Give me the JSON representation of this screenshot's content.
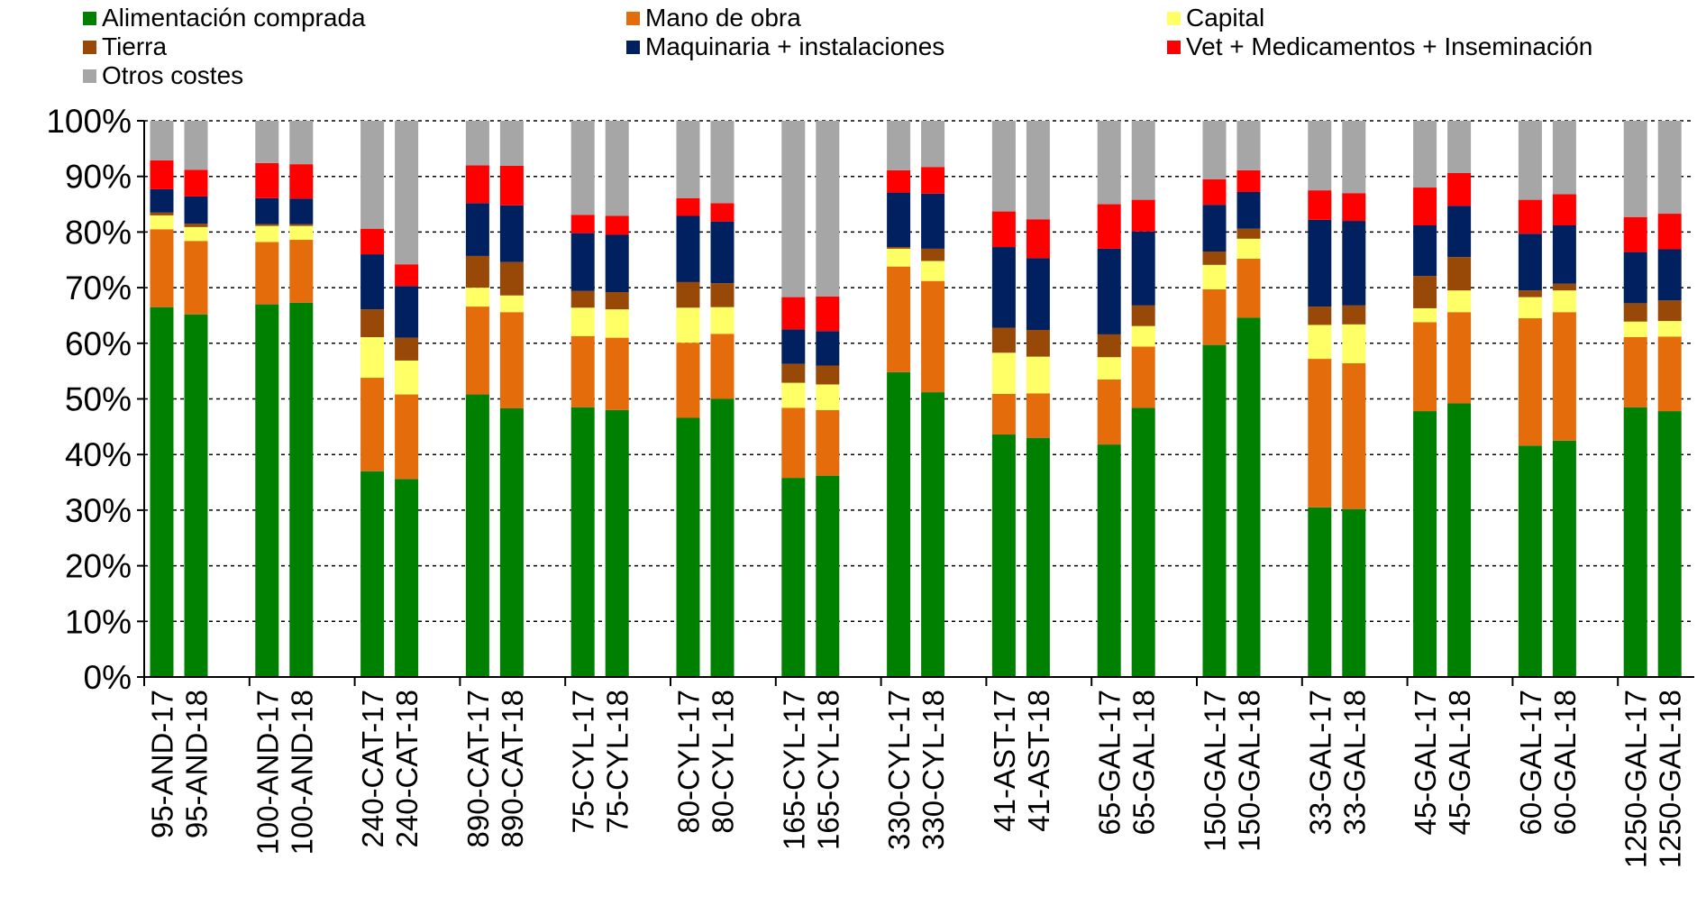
{
  "chart_data": {
    "type": "bar",
    "stacked": true,
    "normalized": "percent",
    "title": "",
    "xlabel": "",
    "ylabel": "",
    "ylim": [
      0,
      100
    ],
    "y_ticks": [
      "0%",
      "10%",
      "20%",
      "30%",
      "40%",
      "50%",
      "60%",
      "70%",
      "80%",
      "90%",
      "100%"
    ],
    "grid": "horizontal dashed",
    "legend_position": "top",
    "groups": [
      "95-AND",
      "100-AND",
      "240-CAT",
      "890-CAT",
      "75-CYL",
      "80-CYL",
      "165-CYL",
      "330-CYL",
      "41-AST",
      "65-GAL",
      "150-GAL",
      "33-GAL",
      "45-GAL",
      "60-GAL",
      "1250-GAL"
    ],
    "categories": [
      "95-AND-17",
      "95-AND-18",
      "100-AND-17",
      "100-AND-18",
      "240-CAT-17",
      "240-CAT-18",
      "890-CAT-17",
      "890-CAT-18",
      "75-CYL-17",
      "75-CYL-18",
      "80-CYL-17",
      "80-CYL-18",
      "165-CYL-17",
      "165-CYL-18",
      "330-CYL-17",
      "330-CYL-18",
      "41-AST-17",
      "41-AST-18",
      "65-GAL-17",
      "65-GAL-18",
      "150-GAL-17",
      "150-GAL-18",
      "33-GAL-17",
      "33-GAL-18",
      "45-GAL-17",
      "45-GAL-18",
      "60-GAL-17",
      "60-GAL-18",
      "1250-GAL-17",
      "1250-GAL-18"
    ],
    "series": [
      {
        "name": "Alimentación comprada",
        "color": "#008000",
        "values": [
          66.5,
          65.2,
          67,
          67.3,
          37,
          35.6,
          50.8,
          48.3,
          48.5,
          48,
          46.6,
          50,
          35.8,
          36.2,
          54.8,
          51.2,
          43.6,
          43,
          41.8,
          48.4,
          59.7,
          64.6,
          30.5,
          30.2,
          47.8,
          49.2,
          41.6,
          42.5,
          48.5,
          47.8
        ]
      },
      {
        "name": "Mano de obra",
        "color": "#E46C0A",
        "values": [
          14,
          13.2,
          11.2,
          11.3,
          16.8,
          15.2,
          15.8,
          17.3,
          12.8,
          13,
          13.5,
          11.7,
          12.6,
          11.8,
          19,
          20,
          7.3,
          8,
          11.7,
          11,
          10,
          10.6,
          26.7,
          26.2,
          16,
          16.4,
          22.9,
          23.1,
          12.6,
          13.4
        ]
      },
      {
        "name": "Capital",
        "color": "#FFFF66",
        "values": [
          2.5,
          2.5,
          2.9,
          2.5,
          7.3,
          6.1,
          3.4,
          3,
          5.1,
          5.1,
          6.3,
          4.8,
          4.5,
          4.6,
          3.2,
          3.6,
          7.4,
          6.6,
          4,
          3.7,
          4.4,
          3.6,
          6.1,
          7,
          2.5,
          3.9,
          3.8,
          3.9,
          2.8,
          2.8
        ]
      },
      {
        "name": "Tierra",
        "color": "#984807",
        "values": [
          0.5,
          0.6,
          0.3,
          0.3,
          5,
          4.1,
          5.7,
          6,
          3,
          3.1,
          4.6,
          4.3,
          3.4,
          3.4,
          0.3,
          2.2,
          4.5,
          4.8,
          4.1,
          3.7,
          2.4,
          1.8,
          3.3,
          3.4,
          5.8,
          6,
          1.2,
          1.2,
          3.3,
          3.7
        ]
      },
      {
        "name": "Maquinaria + instalaciones",
        "color": "#002060",
        "values": [
          4.2,
          4.9,
          4.7,
          4.6,
          9.9,
          9.3,
          9.5,
          10.2,
          10.4,
          10.3,
          11.9,
          11.1,
          6.2,
          6.2,
          9.8,
          9.9,
          14.5,
          12.9,
          15.4,
          13.3,
          8.4,
          6.6,
          15.6,
          15.2,
          9.1,
          9.2,
          10.2,
          10.5,
          9.2,
          9.2
        ]
      },
      {
        "name": "Vet + Medicamentos + Inseminación",
        "color": "#FF0000",
        "values": [
          5.2,
          4.8,
          6.3,
          6.2,
          4.6,
          3.9,
          6.8,
          7.1,
          3.3,
          3.4,
          3.2,
          3.3,
          5.8,
          6.2,
          4,
          4.8,
          6.4,
          7,
          8,
          5.7,
          4.6,
          3.9,
          5.3,
          5,
          6.8,
          5.9,
          6.1,
          5.6,
          6.3,
          6.4
        ]
      },
      {
        "name": "Otros costes",
        "color": "#A6A6A6",
        "values": [
          7.1,
          8.8,
          7.6,
          7.8,
          19.4,
          25.8,
          8,
          8.1,
          16.9,
          17.1,
          13.9,
          14.8,
          31.7,
          31.6,
          8.9,
          8.3,
          16.3,
          17.7,
          15,
          14.2,
          10.5,
          8.9,
          12.5,
          13,
          12,
          9.4,
          14.2,
          13.2,
          17.3,
          16.7
        ]
      }
    ]
  }
}
